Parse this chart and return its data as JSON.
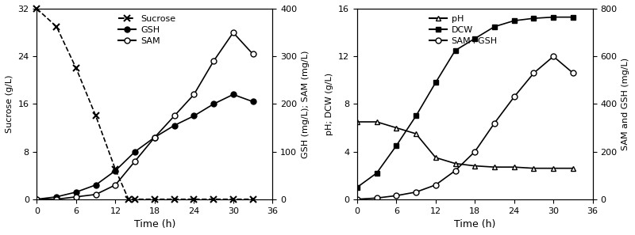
{
  "left": {
    "time_sucrose": [
      0,
      3,
      6,
      9,
      12,
      14,
      15,
      18,
      21,
      24,
      27,
      30,
      33
    ],
    "sucrose": [
      32,
      29,
      22,
      14,
      5,
      0,
      0,
      0,
      0,
      0,
      0,
      0,
      0
    ],
    "time_gsh_sam": [
      0,
      3,
      6,
      9,
      12,
      15,
      18,
      21,
      24,
      27,
      30,
      33
    ],
    "gsh": [
      0,
      5,
      15,
      30,
      60,
      100,
      130,
      155,
      175,
      200,
      220,
      205
    ],
    "sam": [
      0,
      0,
      5,
      10,
      30,
      80,
      130,
      175,
      220,
      290,
      350,
      305
    ],
    "ylabel_left": "Sucrose (g/L)",
    "ylabel_right": "GSH (mg/L); SAM (mg/L)",
    "xlabel": "Time (h)",
    "ylim_left": [
      0,
      32
    ],
    "ylim_right": [
      0,
      400
    ],
    "yticks_left": [
      0,
      8,
      16,
      24,
      32
    ],
    "yticks_right": [
      0,
      100,
      200,
      300,
      400
    ],
    "xticks": [
      0,
      6,
      12,
      18,
      24,
      30,
      36
    ],
    "xlim": [
      0,
      36
    ],
    "legend_sucrose": "Sucrose",
    "legend_gsh": "GSH",
    "legend_sam": "SAM"
  },
  "right": {
    "time": [
      0,
      3,
      6,
      9,
      12,
      15,
      18,
      21,
      24,
      27,
      30,
      33
    ],
    "ph": [
      6.5,
      6.5,
      6.0,
      5.5,
      3.5,
      3.0,
      2.8,
      2.7,
      2.7,
      2.6,
      2.6,
      2.6
    ],
    "dcw": [
      1.0,
      2.2,
      4.5,
      7.0,
      9.8,
      12.5,
      13.5,
      14.5,
      15.0,
      15.2,
      15.3,
      15.3
    ],
    "samgsh": [
      0,
      5,
      15,
      30,
      60,
      120,
      200,
      320,
      430,
      530,
      600,
      530
    ],
    "ylabel_left": "pH; DCW (g/L)",
    "ylabel_right": "SAM and GSH (mg/L)",
    "xlabel": "Time (h)",
    "ylim_left": [
      0,
      16
    ],
    "ylim_right": [
      0,
      800
    ],
    "yticks_left": [
      0,
      4,
      8,
      12,
      16
    ],
    "yticks_right": [
      0,
      200,
      400,
      600,
      800
    ],
    "xticks": [
      0,
      6,
      12,
      18,
      24,
      30,
      36
    ],
    "xlim": [
      0,
      36
    ],
    "legend_ph": "pH",
    "legend_dcw": "DCW",
    "legend_samgsh": "SAM+GSH"
  }
}
